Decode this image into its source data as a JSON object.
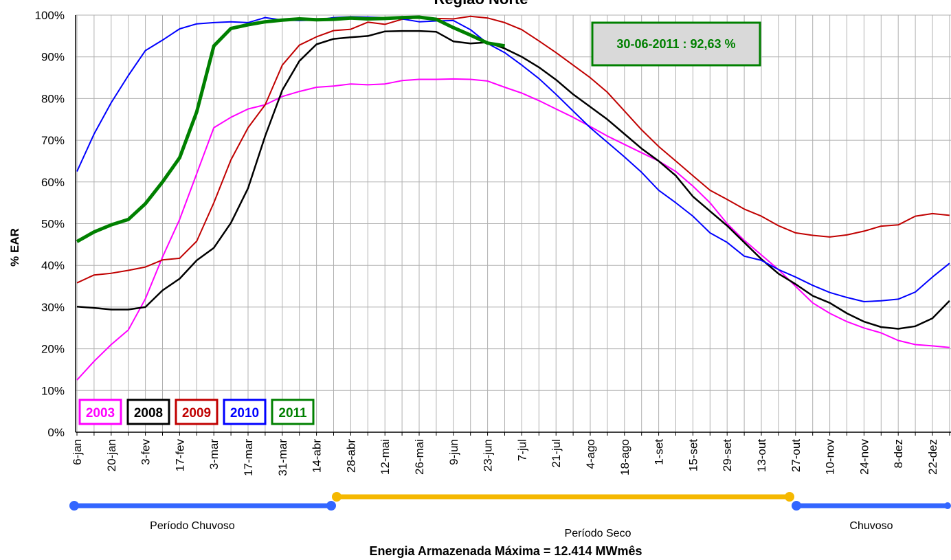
{
  "chart_data": {
    "type": "line",
    "title": "Região Norte",
    "y_label": "% EAR",
    "categories": [
      "6-jan",
      null,
      "20-jan",
      null,
      "3-fev",
      null,
      "17-fev",
      null,
      "3-mar",
      null,
      "17-mar",
      null,
      "31-mar",
      null,
      "14-abr",
      null,
      "28-abr",
      null,
      "12-mai",
      null,
      "26-mai",
      null,
      "9-jun",
      null,
      "23-jun",
      null,
      "7-jul",
      null,
      "21-jul",
      null,
      "4-ago",
      null,
      "18-ago",
      null,
      "1-set",
      null,
      "15-set",
      null,
      "29-set",
      null,
      "13-out",
      null,
      "27-out",
      null,
      "10-nov",
      null,
      "24-nov",
      null,
      "8-dez",
      null,
      "22-dez",
      null
    ],
    "series": [
      {
        "name": "2003",
        "color": "#ff00ff",
        "width": 2,
        "values": [
          12.5,
          17,
          21,
          24.5,
          32,
          42,
          51,
          62,
          73,
          75.5,
          77.5,
          78.5,
          80.5,
          81.7,
          82.7,
          83,
          83.5,
          83.3,
          83.5,
          84.3,
          84.6,
          84.6,
          84.7,
          84.6,
          84.2,
          82.7,
          81.3,
          79.5,
          77.5,
          75.5,
          73.3,
          71,
          69,
          67,
          65,
          62.5,
          59,
          55,
          50,
          46,
          42.5,
          39,
          35,
          31,
          28.5,
          26.5,
          25,
          23.8,
          22,
          21,
          20.7,
          20.3
        ]
      },
      {
        "name": "2008",
        "color": "#000000",
        "width": 2.5,
        "values": [
          30.1,
          29.8,
          29.4,
          29.4,
          30,
          34,
          36.8,
          41.2,
          44.2,
          50.2,
          58.5,
          71,
          82,
          89,
          93,
          94.3,
          94.7,
          95,
          96.1,
          96.2,
          96.2,
          96,
          93.7,
          93.2,
          93.5,
          92,
          90,
          87.5,
          84.5,
          81,
          78,
          75,
          71.5,
          68,
          65,
          61.5,
          56.5,
          53,
          49.5,
          45.5,
          41.5,
          38,
          35.5,
          32.7,
          31,
          28.5,
          26.5,
          25.2,
          24.8,
          25.4,
          27.3,
          31.5
        ]
      },
      {
        "name": "2009",
        "color": "#c00000",
        "width": 2,
        "values": [
          35.8,
          37.7,
          38.1,
          38.8,
          39.6,
          41.3,
          41.7,
          45.8,
          55,
          65.3,
          73,
          78.5,
          88,
          92.8,
          94.8,
          96.3,
          96.6,
          98.3,
          97.8,
          99,
          99.4,
          99.2,
          99.1,
          99.7,
          99.3,
          98.2,
          96.5,
          93.8,
          91,
          88,
          85,
          81.5,
          77,
          72.5,
          68.5,
          65,
          61.5,
          58,
          55.8,
          53.5,
          51.8,
          49.5,
          47.8,
          47.2,
          46.8,
          47.3,
          48.2,
          49.4,
          49.7,
          51.8,
          52.4,
          52
        ]
      },
      {
        "name": "2010",
        "color": "#0000ff",
        "width": 2,
        "values": [
          62.5,
          71.5,
          79,
          85.5,
          91.5,
          94,
          96.7,
          97.9,
          98.2,
          98.4,
          98.2,
          99.4,
          98.8,
          98.7,
          98.8,
          99.4,
          99.6,
          99.5,
          99.4,
          99.1,
          98.4,
          98.6,
          98.7,
          96.5,
          93.2,
          91,
          88,
          84.8,
          81,
          77,
          73,
          69.5,
          66,
          62.3,
          58,
          55,
          51.8,
          47.8,
          45.5,
          42.2,
          41.2,
          39,
          37.2,
          35.2,
          33.5,
          32.3,
          31.3,
          31.5,
          31.9,
          33.6,
          37.2,
          40.5
        ]
      },
      {
        "name": "2011",
        "color": "#008000",
        "width": 5,
        "values": [
          45.7,
          48,
          49.7,
          51,
          54.8,
          60,
          65.8,
          76.8,
          92.6,
          96.8,
          97.7,
          98.4,
          98.8,
          99.1,
          98.9,
          99,
          99.3,
          99.1,
          99.2,
          99.4,
          99.5,
          99,
          97,
          95.2,
          93.3,
          92.63,
          null,
          null,
          null,
          null,
          null,
          null,
          null,
          null,
          null,
          null,
          null,
          null,
          null,
          null,
          null,
          null,
          null,
          null,
          null,
          null,
          null,
          null,
          null,
          null,
          null,
          null
        ]
      }
    ],
    "ylim": [
      0,
      100
    ],
    "yticks": [
      {
        "value": 0,
        "label": "0%"
      },
      {
        "value": 10,
        "label": "10%"
      },
      {
        "value": 20,
        "label": "20%"
      },
      {
        "value": 30,
        "label": "30%"
      },
      {
        "value": 40,
        "label": "40%"
      },
      {
        "value": 50,
        "label": "50%"
      },
      {
        "value": 60,
        "label": "60%"
      },
      {
        "value": 70,
        "label": "70%"
      },
      {
        "value": 80,
        "label": "80%"
      },
      {
        "value": 90,
        "label": "90%"
      },
      {
        "value": 100,
        "label": "100%"
      }
    ],
    "grid": true,
    "legend": "lower left",
    "annotation": "30-06-2011 : 92,63 %",
    "periods": [
      "Período Chuvoso",
      "Período Seco",
      "Chuvoso"
    ],
    "footer": "Energia Armazenada Máxima = 12.414 MWmês"
  }
}
